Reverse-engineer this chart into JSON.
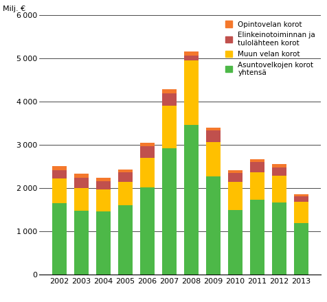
{
  "years": [
    "2002",
    "2003",
    "2004",
    "2005",
    "2006",
    "2007",
    "2008",
    "2009",
    "2010",
    "2011",
    "2012",
    "2013"
  ],
  "green": [
    1650,
    1480,
    1460,
    1600,
    2020,
    2920,
    3460,
    2280,
    1490,
    1730,
    1670,
    1200
  ],
  "yellow": [
    570,
    530,
    520,
    540,
    680,
    980,
    1490,
    780,
    650,
    640,
    620,
    490
  ],
  "red": [
    200,
    240,
    190,
    230,
    270,
    290,
    110,
    270,
    210,
    230,
    190,
    120
  ],
  "orange": [
    90,
    80,
    75,
    65,
    75,
    100,
    100,
    75,
    65,
    75,
    75,
    50
  ],
  "colors": {
    "green": "#4db848",
    "yellow": "#ffc000",
    "red": "#c0504d",
    "orange": "#f4782c"
  },
  "legend_labels": [
    "Opintovelan korot",
    "Elinkeinotoiminnan ja\ntulolähteen korot",
    "Muun velan korot",
    "Asuntovelkojen korot\nyhtensä"
  ],
  "ylabel": "Milj. €",
  "ylim": [
    0,
    6000
  ],
  "yticks": [
    0,
    1000,
    2000,
    3000,
    4000,
    5000,
    6000
  ]
}
